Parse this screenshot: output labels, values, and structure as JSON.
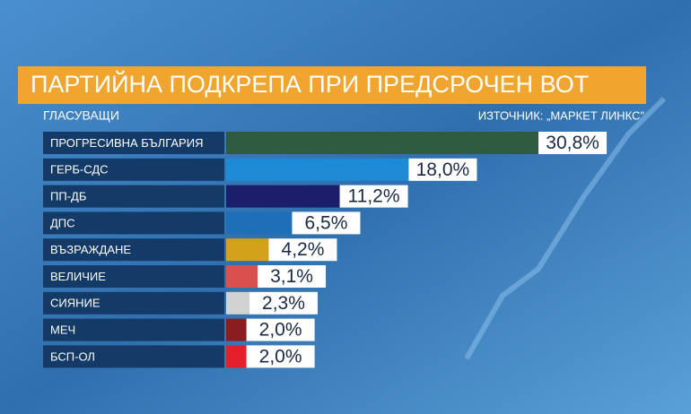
{
  "chart_data": {
    "type": "hbar",
    "title": "ПАРТИЙНА ПОДКРЕПА ПРИ ПРЕДСРОЧЕН ВОТ",
    "subtitle": "ГЛАСУВАЩИ",
    "source": "ИЗТОЧНИК: „МАРКЕТ ЛИНКС\"",
    "categories": [
      "ПРОГРЕСИВНА БЪЛГАРИЯ",
      "ГЕРБ-СДС",
      "ПП-ДБ",
      "ДПС",
      "ВЪЗРАЖДАНЕ",
      "ВЕЛИЧИЕ",
      "СИЯНИЕ",
      "МЕЧ",
      "БСП-ОЛ"
    ],
    "values": [
      30.8,
      18.0,
      11.2,
      6.5,
      4.2,
      3.1,
      2.3,
      2.0,
      2.0
    ],
    "value_labels": [
      "30,8%",
      "18,0%",
      "11,2%",
      "6,5%",
      "4,2%",
      "3,1%",
      "2,3%",
      "2,0%",
      "2,0%"
    ],
    "colors": [
      "#2f5b40",
      "#1e8ad6",
      "#1b1e6a",
      "#1f6fb8",
      "#d4a21a",
      "#d9504f",
      "#d2d2d2",
      "#8a1d1d",
      "#e3202b"
    ]
  }
}
